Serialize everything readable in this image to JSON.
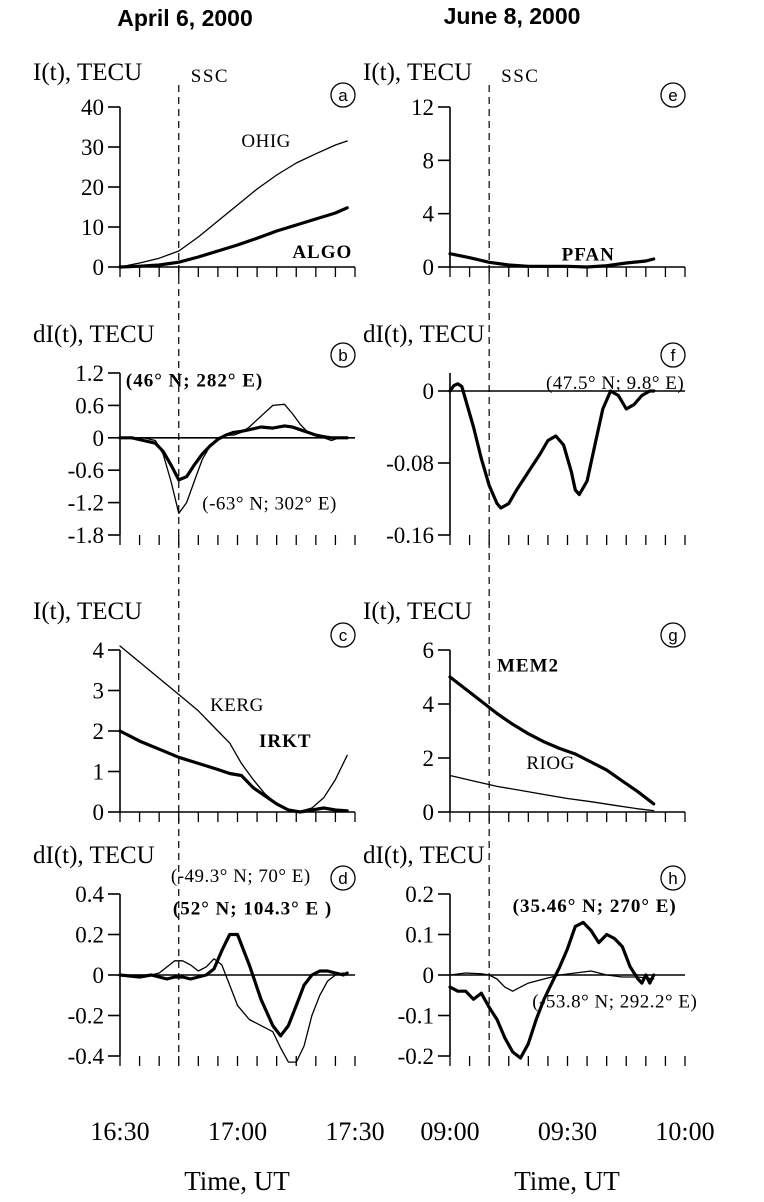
{
  "columns": [
    {
      "title": "April 6, 2000"
    },
    {
      "title": "June 8, 2000"
    }
  ],
  "x_axis": {
    "label": "Time, UT"
  },
  "chart_data": [
    {
      "id": "a",
      "type": "line",
      "ylabel": "I(t), TECU",
      "ylim": [
        0,
        40
      ],
      "yticks": [
        "0",
        "10",
        "20",
        "30",
        "40"
      ],
      "ytick_values": [
        0,
        10,
        20,
        30,
        40
      ],
      "xlim": [
        0,
        60
      ],
      "xticks": [
        0,
        5,
        10,
        15,
        20,
        25,
        30,
        35,
        40,
        45,
        50,
        55,
        60
      ],
      "ssc": 15,
      "ssc_label": "SSC",
      "series": [
        {
          "name": "OHIG",
          "width": 1.3,
          "x": [
            0,
            5,
            10,
            15,
            20,
            25,
            30,
            35,
            40,
            45,
            50,
            55,
            58
          ],
          "y": [
            0,
            1,
            2.2,
            4,
            7.5,
            11.5,
            15.5,
            19.5,
            23,
            26,
            28.3,
            30.5,
            31.5
          ]
        },
        {
          "name": "ALGO",
          "width": 3.2,
          "x": [
            0,
            5,
            10,
            15,
            20,
            25,
            30,
            35,
            40,
            45,
            50,
            55,
            58
          ],
          "y": [
            0,
            0.2,
            0.5,
            1.2,
            2.5,
            4,
            5.5,
            7.2,
            9,
            10.5,
            12,
            13.5,
            14.8
          ]
        }
      ],
      "annotations": [
        {
          "text": "OHIG",
          "bold": false,
          "x": 31,
          "y": 30
        },
        {
          "text": "ALGO",
          "bold": true,
          "x": 44,
          "y": 2.2
        }
      ]
    },
    {
      "id": "b",
      "type": "line",
      "ylabel": "dI(t), TECU",
      "ylim": [
        -1.8,
        1.2
      ],
      "yticks": [
        "1.2",
        "0.6",
        "0",
        "-0.6",
        "-1.2",
        "-1.8"
      ],
      "ytick_values": [
        1.2,
        0.6,
        0,
        -0.6,
        -1.2,
        -1.8
      ],
      "xlim": [
        0,
        60
      ],
      "xticks": [
        0,
        5,
        10,
        15,
        20,
        25,
        30,
        35,
        40,
        45,
        50,
        55,
        60
      ],
      "ssc": 15,
      "series": [
        {
          "name": "",
          "width": 1.3,
          "x": [
            0,
            3,
            6,
            9,
            11,
            13,
            15,
            17,
            19,
            21,
            23,
            25,
            27,
            29,
            31,
            33,
            36,
            39,
            42,
            44,
            46,
            48,
            50,
            52,
            54,
            56,
            58
          ],
          "y": [
            0,
            0,
            0,
            -0.05,
            -0.3,
            -0.8,
            -1.4,
            -1.2,
            -0.8,
            -0.4,
            -0.15,
            0,
            0.05,
            0.05,
            0.1,
            0.2,
            0.4,
            0.6,
            0.62,
            0.45,
            0.25,
            0.1,
            0.05,
            0,
            -0.05,
            0,
            0
          ]
        },
        {
          "name": "",
          "width": 3.2,
          "x": [
            0,
            3,
            6,
            9,
            11,
            13,
            15,
            17,
            19,
            21,
            23,
            25,
            27,
            29,
            31,
            33,
            36,
            39,
            42,
            44,
            46,
            48,
            50,
            52,
            54,
            56,
            58
          ],
          "y": [
            0,
            0,
            -0.05,
            -0.1,
            -0.25,
            -0.5,
            -0.78,
            -0.72,
            -0.5,
            -0.3,
            -0.15,
            -0.03,
            0.05,
            0.1,
            0.12,
            0.15,
            0.2,
            0.18,
            0.22,
            0.2,
            0.15,
            0.1,
            0.05,
            0.02,
            0,
            0,
            0
          ]
        }
      ],
      "annotations": [
        {
          "text": "(46° N; 282° E)",
          "bold": true,
          "x": 1.5,
          "y": 0.95
        },
        {
          "text": "(-63° N; 302° E)",
          "bold": false,
          "x": 21,
          "y": -1.33
        }
      ]
    },
    {
      "id": "c",
      "type": "line",
      "ylabel": "I(t), TECU",
      "ylim": [
        0,
        4
      ],
      "yticks": [
        "0",
        "1",
        "2",
        "3",
        "4"
      ],
      "ytick_values": [
        0,
        1,
        2,
        3,
        4
      ],
      "xlim": [
        0,
        60
      ],
      "xticks": [
        0,
        5,
        10,
        15,
        20,
        25,
        30,
        35,
        40,
        45,
        50,
        55,
        60
      ],
      "ssc": 15,
      "series": [
        {
          "name": "KERG",
          "width": 1.3,
          "x": [
            0,
            5,
            10,
            15,
            20,
            25,
            28,
            31,
            34,
            37,
            40,
            43,
            46,
            49,
            52,
            55,
            58
          ],
          "y": [
            4.1,
            3.7,
            3.3,
            2.9,
            2.5,
            2,
            1.7,
            1.2,
            0.8,
            0.45,
            0.2,
            0.05,
            0.02,
            0.1,
            0.35,
            0.8,
            1.4
          ]
        },
        {
          "name": "IRKT",
          "width": 3.2,
          "x": [
            0,
            5,
            10,
            15,
            20,
            25,
            28,
            31,
            34,
            37,
            40,
            43,
            46,
            49,
            52,
            55,
            58
          ],
          "y": [
            2,
            1.75,
            1.55,
            1.35,
            1.2,
            1.05,
            0.95,
            0.9,
            0.6,
            0.4,
            0.2,
            0.05,
            0,
            0.05,
            0.1,
            0.05,
            0.03
          ]
        }
      ],
      "annotations": [
        {
          "text": "KERG",
          "bold": false,
          "x": 23,
          "y": 2.5
        },
        {
          "text": "IRKT",
          "bold": true,
          "x": 35.5,
          "y": 1.6
        }
      ]
    },
    {
      "id": "d",
      "type": "line",
      "ylabel": "dI(t), TECU",
      "ylim": [
        -0.4,
        0.4
      ],
      "yticks": [
        "0.4",
        "0.2",
        "0",
        "-0.2",
        "-0.4"
      ],
      "ytick_values": [
        0.4,
        0.2,
        0,
        -0.2,
        -0.4
      ],
      "xlim": [
        0,
        60
      ],
      "xticks": [
        0,
        5,
        10,
        15,
        20,
        25,
        30,
        35,
        40,
        45,
        50,
        55,
        60
      ],
      "ssc": 15,
      "series": [
        {
          "name": "",
          "width": 1.3,
          "x": [
            0,
            5,
            8,
            10,
            12,
            14,
            16,
            18,
            20,
            22,
            24,
            26,
            28,
            30,
            33,
            36,
            39,
            41,
            43,
            45,
            47,
            49,
            51,
            53,
            55,
            57,
            58
          ],
          "y": [
            0,
            0,
            0,
            0.01,
            0.04,
            0.07,
            0.07,
            0.05,
            0.02,
            0.04,
            0.08,
            0.05,
            -0.05,
            -0.15,
            -0.22,
            -0.25,
            -0.28,
            -0.36,
            -0.43,
            -0.43,
            -0.35,
            -0.2,
            -0.1,
            -0.03,
            0,
            0.01,
            0
          ]
        },
        {
          "name": "",
          "width": 3.2,
          "x": [
            0,
            5,
            8,
            10,
            12,
            14,
            16,
            18,
            20,
            22,
            24,
            26,
            28,
            30,
            33,
            36,
            39,
            41,
            43,
            45,
            47,
            49,
            51,
            53,
            55,
            57,
            58
          ],
          "y": [
            0,
            -0.01,
            0,
            -0.01,
            -0.02,
            -0.01,
            -0.01,
            -0.02,
            -0.01,
            0,
            0.03,
            0.12,
            0.2,
            0.2,
            0.05,
            -0.12,
            -0.25,
            -0.3,
            -0.25,
            -0.15,
            -0.05,
            0,
            0.02,
            0.02,
            0.01,
            0,
            0.01
          ]
        }
      ],
      "annotations": [
        {
          "text": "(-49.3° N; 70° E)",
          "bold": false,
          "x": 13,
          "y": 0.46
        },
        {
          "text": "(52° N; 104.3° E )",
          "bold": true,
          "x": 13.5,
          "y": 0.3
        }
      ]
    },
    {
      "id": "e",
      "type": "line",
      "ylabel": "I(t), TECU",
      "ylim": [
        0,
        12
      ],
      "yticks": [
        "0",
        "4",
        "8",
        "12"
      ],
      "ytick_values": [
        0,
        4,
        8,
        12
      ],
      "xlim": [
        0,
        60
      ],
      "xticks": [
        0,
        5,
        10,
        15,
        20,
        25,
        30,
        35,
        40,
        45,
        50,
        55,
        60
      ],
      "ssc": 10,
      "ssc_label": "SSC",
      "series": [
        {
          "name": "PFAN",
          "width": 3.2,
          "x": [
            0,
            5,
            10,
            15,
            20,
            25,
            30,
            35,
            40,
            45,
            50,
            52
          ],
          "y": [
            1,
            0.7,
            0.35,
            0.15,
            0.05,
            0.05,
            0.05,
            0,
            0.1,
            0.3,
            0.45,
            0.6
          ]
        }
      ],
      "annotations": [
        {
          "text": "PFAN",
          "bold": true,
          "x": 28.5,
          "y": 0.5
        }
      ]
    },
    {
      "id": "f",
      "type": "line",
      "ylabel": "dI(t), TECU",
      "ylim": [
        -0.16,
        0.02
      ],
      "yticks": [
        "0",
        "-0.08",
        "-0.16"
      ],
      "ytick_values": [
        0,
        -0.08,
        -0.16
      ],
      "xlim": [
        0,
        60
      ],
      "xticks": [
        0,
        5,
        10,
        15,
        20,
        25,
        30,
        35,
        40,
        45,
        50,
        55,
        60
      ],
      "ssc": 10,
      "series": [
        {
          "name": "",
          "width": 3.2,
          "x": [
            0,
            1,
            2,
            3,
            4,
            6,
            8,
            10,
            12,
            13,
            15,
            17,
            20,
            23,
            25,
            27,
            29,
            31,
            32,
            33,
            35,
            37,
            39,
            41,
            43,
            45,
            47,
            49,
            51,
            52
          ],
          "y": [
            0,
            0.006,
            0.008,
            0.005,
            -0.01,
            -0.04,
            -0.075,
            -0.105,
            -0.125,
            -0.13,
            -0.125,
            -0.11,
            -0.09,
            -0.07,
            -0.055,
            -0.05,
            -0.06,
            -0.09,
            -0.11,
            -0.115,
            -0.1,
            -0.06,
            -0.02,
            0,
            -0.005,
            -0.02,
            -0.015,
            -0.005,
            0,
            0
          ]
        }
      ],
      "annotations": [
        {
          "text": "(47.5° N; 9.8° E)",
          "bold": false,
          "x": 24.5,
          "y": 0.002
        }
      ]
    },
    {
      "id": "g",
      "type": "line",
      "ylabel": "I(t), TECU",
      "ylim": [
        0,
        6
      ],
      "yticks": [
        "0",
        "2",
        "4",
        "6"
      ],
      "ytick_values": [
        0,
        2,
        4,
        6
      ],
      "xlim": [
        0,
        60
      ],
      "xticks": [
        0,
        5,
        10,
        15,
        20,
        25,
        30,
        35,
        40,
        45,
        50,
        55,
        60
      ],
      "ssc": 10,
      "series": [
        {
          "name": "MEM2",
          "width": 3.2,
          "x": [
            0,
            4,
            8,
            12,
            16,
            20,
            24,
            28,
            32,
            36,
            40,
            44,
            48,
            52
          ],
          "y": [
            5,
            4.55,
            4.1,
            3.65,
            3.25,
            2.9,
            2.6,
            2.35,
            2.15,
            1.85,
            1.55,
            1.15,
            0.75,
            0.3
          ]
        },
        {
          "name": "RIOG",
          "width": 1.3,
          "x": [
            0,
            6,
            12,
            18,
            24,
            30,
            36,
            42,
            48,
            52
          ],
          "y": [
            1.35,
            1.15,
            0.95,
            0.8,
            0.65,
            0.5,
            0.38,
            0.25,
            0.12,
            0.05
          ]
        }
      ],
      "annotations": [
        {
          "text": "MEM2",
          "bold": true,
          "x": 12,
          "y": 5.2
        },
        {
          "text": "RIOG",
          "bold": false,
          "x": 19.5,
          "y": 1.6
        }
      ]
    },
    {
      "id": "h",
      "type": "line",
      "ylabel": "dI(t), TECU",
      "ylim": [
        -0.2,
        0.2
      ],
      "yticks": [
        "0.2",
        "0.1",
        "0",
        "-0.1",
        "-0.2"
      ],
      "ytick_values": [
        0.2,
        0.1,
        0,
        -0.1,
        -0.2
      ],
      "xlim": [
        0,
        60
      ],
      "xticks": [
        0,
        5,
        10,
        15,
        20,
        25,
        30,
        35,
        40,
        45,
        50,
        55,
        60
      ],
      "ssc": 10,
      "series": [
        {
          "name": "",
          "width": 1.3,
          "x": [
            0,
            4,
            8,
            10,
            12,
            14,
            16,
            18,
            20,
            24,
            28,
            32,
            36,
            40,
            44,
            48,
            52
          ],
          "y": [
            0,
            0.005,
            0.003,
            0,
            -0.01,
            -0.03,
            -0.04,
            -0.03,
            -0.02,
            -0.01,
            0,
            0.005,
            0.01,
            0,
            -0.005,
            -0.005,
            -0.01
          ]
        },
        {
          "name": "",
          "width": 3.2,
          "x": [
            0,
            2,
            4,
            6,
            8,
            10,
            12,
            14,
            16,
            18,
            20,
            22,
            24,
            26,
            28,
            30,
            32,
            34,
            36,
            38,
            40,
            42,
            44,
            46,
            48,
            49,
            50,
            51,
            52
          ],
          "y": [
            -0.03,
            -0.04,
            -0.04,
            -0.06,
            -0.045,
            -0.08,
            -0.11,
            -0.155,
            -0.19,
            -0.205,
            -0.17,
            -0.11,
            -0.06,
            -0.02,
            0.02,
            0.065,
            0.12,
            0.13,
            0.11,
            0.08,
            0.1,
            0.09,
            0.07,
            0.02,
            -0.01,
            -0.02,
            0,
            -0.02,
            0
          ]
        }
      ],
      "annotations": [
        {
          "text": "(35.46° N; 270° E)",
          "bold": true,
          "x": 16,
          "y": 0.155
        },
        {
          "text": "(-53.8° N; 292.2° E)",
          "bold": false,
          "x": 21,
          "y": -0.08
        }
      ]
    }
  ],
  "panel_x_tick_labels": [
    [
      "16:30",
      "17:00",
      "17:30"
    ],
    [
      "09:00",
      "09:30",
      "10:00"
    ]
  ]
}
